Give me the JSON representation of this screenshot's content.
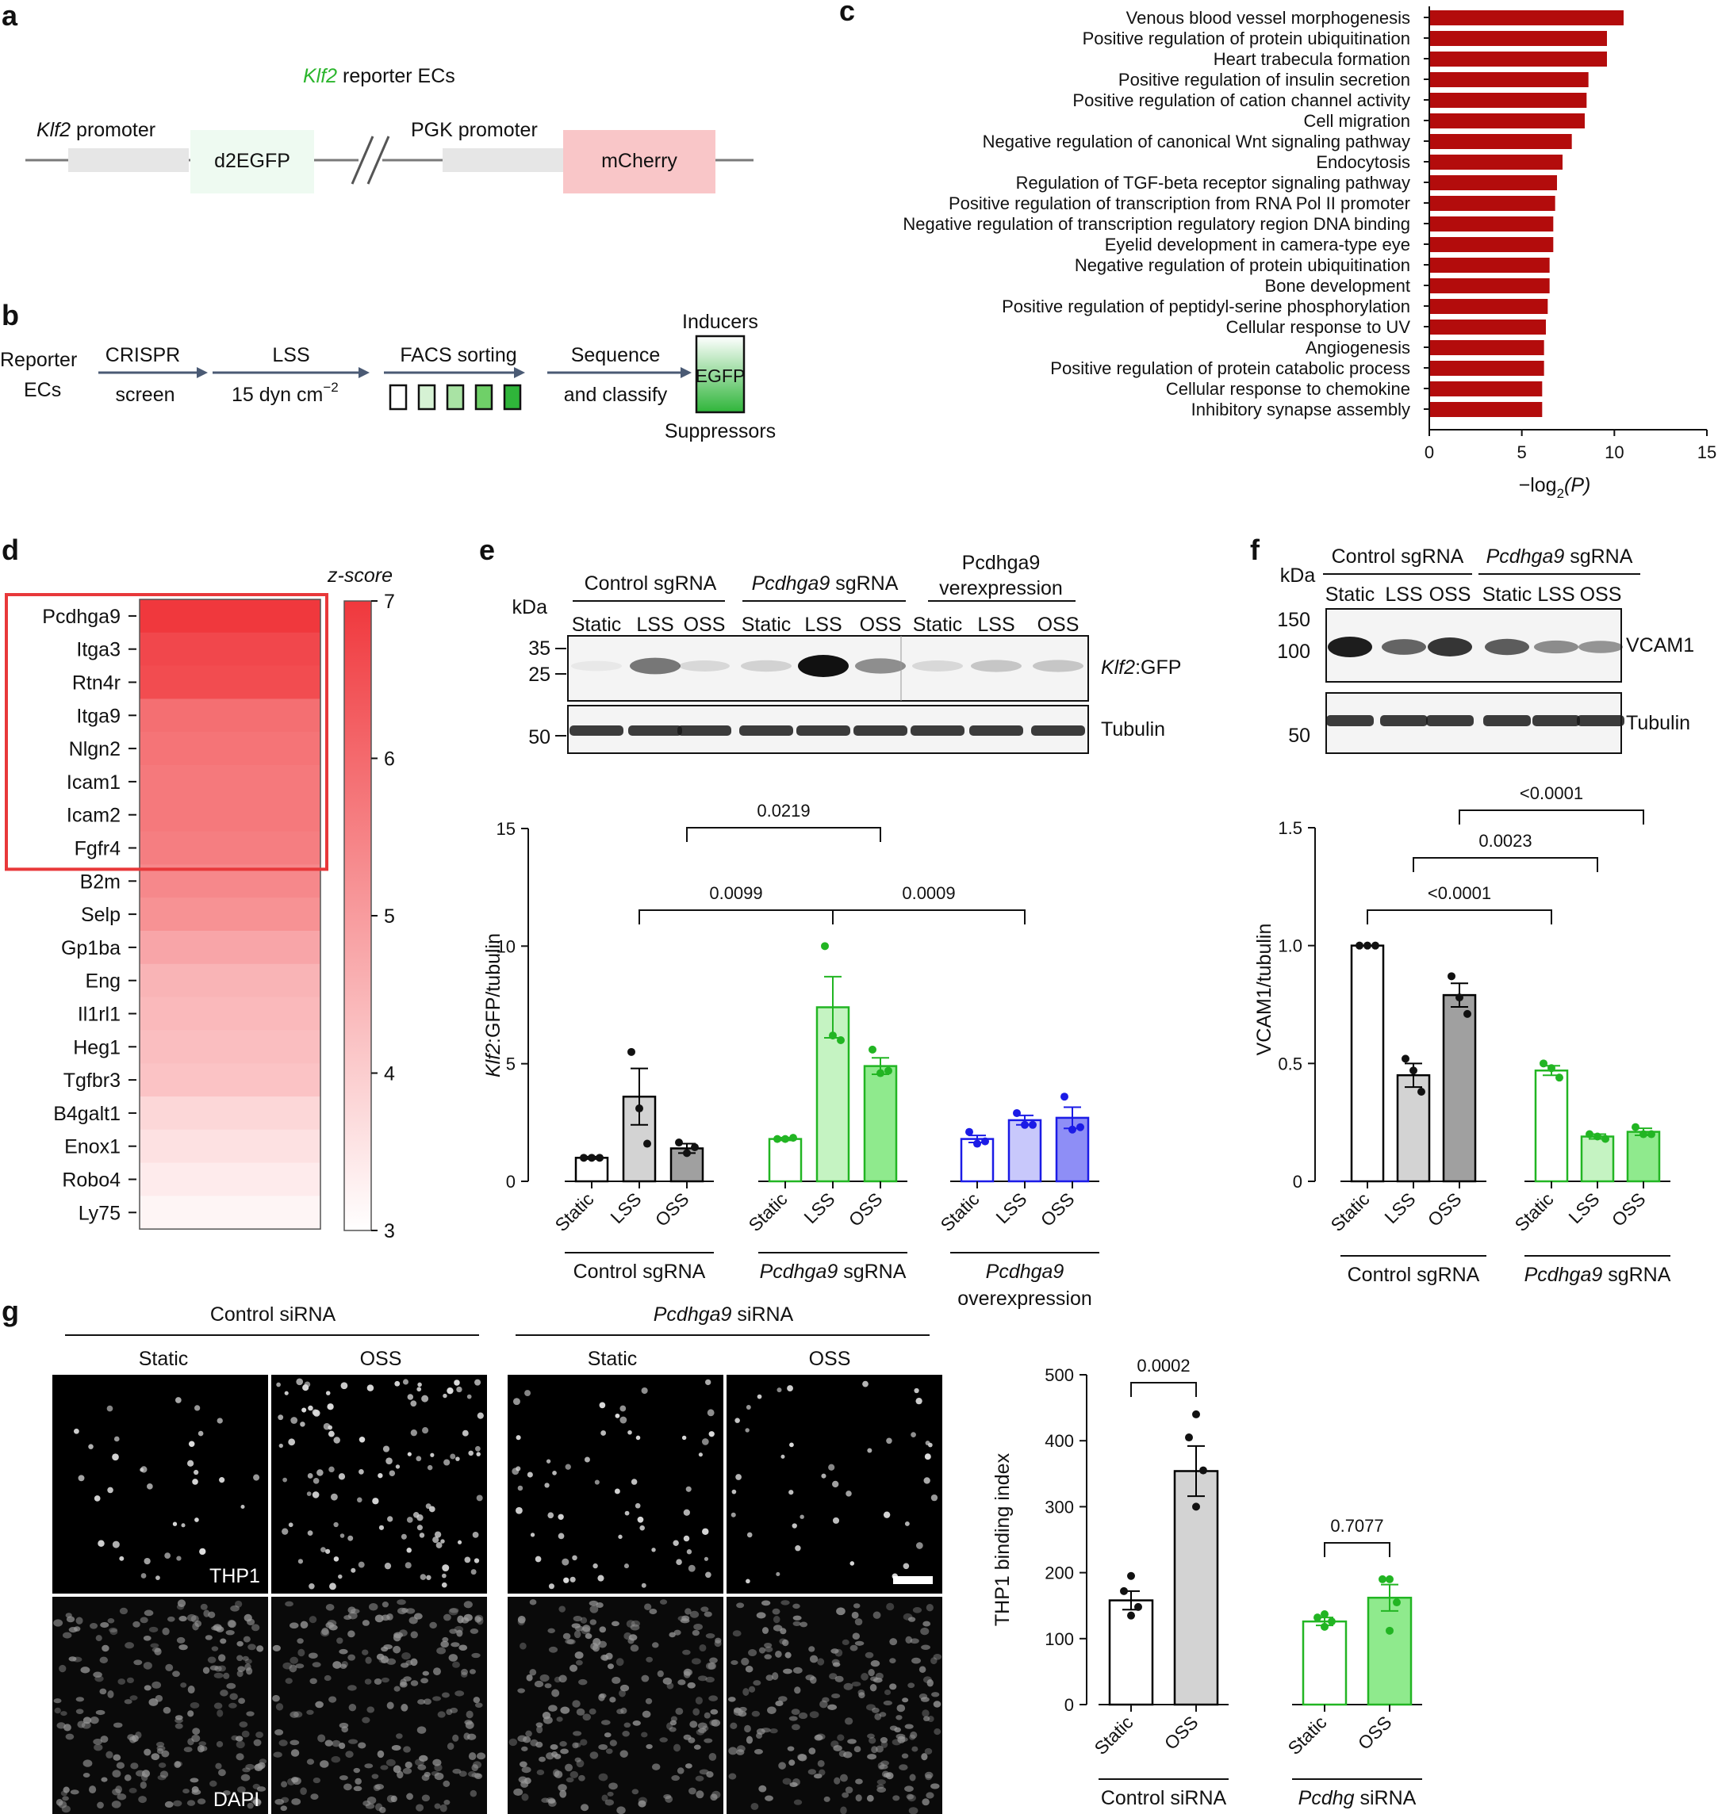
{
  "panels": {
    "a": "a",
    "b": "b",
    "c": "c",
    "d": "d",
    "e": "e",
    "f": "f",
    "g": "g"
  },
  "panel_a": {
    "title_gene": "Klf2",
    "title_rest": " reporter ECs",
    "klf2_promoter_gene": "Klf2",
    "klf2_promoter_rest": " promoter",
    "d2egfp": "d2EGFP",
    "pgk_promoter": "PGK promoter",
    "mcherry": "mCherry",
    "colors": {
      "d2egfp_box": "#eefaf1",
      "mcherry_box": "#f9c6c8",
      "promoter_box": "#e6e6e6"
    }
  },
  "panel_b": {
    "reporter_line1": "Reporter",
    "reporter_line2": "ECs",
    "crispr_line1": "CRISPR",
    "crispr_line2": "screen",
    "lss": "LSS",
    "lss_unit": "15 dyn cm",
    "lss_unit_sup": "−2",
    "facs": "FACS sorting",
    "sequence_line1": "Sequence",
    "sequence_line2": "and classify",
    "inducers": "Inducers",
    "egfp": "EGFP",
    "suppressors": "Suppressors",
    "facs_box_fills": [
      "#ffffff",
      "#d6f2d4",
      "#a9e3a4",
      "#6fd068",
      "#2fb53a"
    ]
  },
  "chart_data": [
    {
      "panel": "c",
      "type": "bar",
      "orientation": "horizontal",
      "categories": [
        "Venous blood vessel morphogenesis",
        "Positive regulation of protein ubiquitination",
        "Heart trabecula formation",
        "Positive regulation of insulin secretion",
        "Positive regulation of cation channel activity",
        "Cell migration",
        "Negative regulation of canonical Wnt signaling pathway",
        "Endocytosis",
        "Regulation of TGF-beta receptor signaling pathway",
        "Positive regulation of transcription from RNA Pol II promoter",
        "Negative regulation of transcription regulatory region DNA binding",
        "Eyelid development in camera-type eye",
        "Negative regulation of protein ubiquitination",
        "Bone development",
        "Positive regulation of peptidyl-serine phosphorylation",
        "Cellular response to UV",
        "Angiogenesis",
        "Positive regulation of protein catabolic process",
        "Cellular response to chemokine",
        "Inhibitory synapse assembly"
      ],
      "values": [
        10.5,
        9.6,
        9.6,
        8.6,
        8.5,
        8.4,
        7.7,
        7.2,
        6.9,
        6.8,
        6.7,
        6.7,
        6.5,
        6.5,
        6.4,
        6.3,
        6.2,
        6.2,
        6.1,
        6.1
      ],
      "xlabel": "−log",
      "xlabel_sub": "2",
      "xlabel_tail": "(P)",
      "xticks": [
        "0",
        "5",
        "10",
        "15"
      ],
      "xlim": [
        0,
        15
      ],
      "bar_color": "#b30c0c"
    },
    {
      "panel": "d",
      "type": "heatmap",
      "genes": [
        "Pcdhga9",
        "Itga3",
        "Rtn4r",
        "Itga9",
        "Nlgn2",
        "Icam1",
        "Icam2",
        "Fgfr4",
        "B2m",
        "Selp",
        "Gp1ba",
        "Eng",
        "Il1rl1",
        "Heg1",
        "Tgfbr3",
        "B4galt1",
        "Enox1",
        "Robo4",
        "Ly75"
      ],
      "z_scores": [
        7.0,
        6.7,
        6.6,
        5.9,
        5.8,
        5.7,
        5.7,
        5.6,
        5.4,
        5.2,
        4.8,
        4.5,
        4.4,
        4.3,
        4.2,
        3.8,
        3.6,
        3.4,
        3.2
      ],
      "colorbar_title": "z-score",
      "colorbar_ticks": [
        "3",
        "4",
        "5",
        "6",
        "7"
      ],
      "range": [
        3,
        7
      ],
      "highlighted_count": 8,
      "colors": {
        "high": "#f0383d",
        "low": "#ffffff",
        "highlight_box": "#e8383a"
      }
    },
    {
      "panel": "e",
      "type": "bar",
      "ylabel_gene": "Klf2",
      "ylabel_rest": ":GFP/tubulin",
      "ylim": [
        0,
        15
      ],
      "yticks": [
        "0",
        "5",
        "10",
        "15"
      ],
      "categories": [
        "Static",
        "LSS",
        "OSS"
      ],
      "groups": [
        {
          "name": "Control sgRNA",
          "name_italic_part": "",
          "color": "#000000",
          "fills": [
            "#ffffff",
            "#d3d3d3",
            "#a0a0a0"
          ],
          "means": [
            1.0,
            3.6,
            1.4
          ],
          "errors": [
            0.05,
            1.2,
            0.2
          ],
          "points": [
            [
              1.0,
              1.0,
              1.0
            ],
            [
              5.5,
              3.1,
              1.6
            ],
            [
              1.65,
              1.2,
              1.45
            ]
          ]
        },
        {
          "name": " sgRNA",
          "name_italic_part": "Pcdhga9",
          "color": "#22b523",
          "fills": [
            "#ffffff",
            "#c5f3c2",
            "#8fea8d"
          ],
          "means": [
            1.8,
            7.4,
            4.9
          ],
          "errors": [
            0.06,
            1.3,
            0.35
          ],
          "points": [
            [
              1.8,
              1.8,
              1.85
            ],
            [
              10.0,
              6.2,
              6.0
            ],
            [
              5.6,
              4.6,
              4.7
            ]
          ]
        },
        {
          "name": "overexpression",
          "name_italic_part": "Pcdhga9",
          "color": "#1b1be6",
          "fills": [
            "#ffffff",
            "#c8c8fb",
            "#8e8ef6"
          ],
          "means": [
            1.8,
            2.6,
            2.7
          ],
          "errors": [
            0.15,
            0.2,
            0.45
          ],
          "points": [
            [
              2.1,
              1.6,
              1.7
            ],
            [
              2.9,
              2.4,
              2.4
            ],
            [
              3.6,
              2.2,
              2.3
            ]
          ]
        }
      ],
      "comparisons": [
        {
          "label": "0.0219",
          "from": "Control sgRNA OSS",
          "to": "Pcdhga9 sgRNA OSS"
        },
        {
          "label": "0.0099",
          "from": "Control sgRNA LSS",
          "to": "Pcdhga9 sgRNA LSS"
        },
        {
          "label": "0.0009",
          "from": "Pcdhga9 sgRNA LSS",
          "to": "Pcdhga9 overexpression LSS"
        }
      ]
    },
    {
      "panel": "f",
      "type": "bar",
      "ylabel": "VCAM1/tubulin",
      "ylim": [
        0,
        1.5
      ],
      "yticks": [
        "0",
        "0.5",
        "1.0",
        "1.5"
      ],
      "categories": [
        "Static",
        "LSS",
        "OSS"
      ],
      "groups": [
        {
          "name": "Control sgRNA",
          "name_italic_part": "",
          "color": "#000000",
          "fills": [
            "#ffffff",
            "#d3d3d3",
            "#a0a0a0"
          ],
          "means": [
            1.0,
            0.45,
            0.79
          ],
          "errors": [
            0.0,
            0.05,
            0.05
          ],
          "points": [
            [
              1.0,
              1.0,
              1.0
            ],
            [
              0.52,
              0.47,
              0.38
            ],
            [
              0.87,
              0.78,
              0.71
            ]
          ]
        },
        {
          "name": " sgRNA",
          "name_italic_part": "Pcdhga9",
          "color": "#22b523",
          "fills": [
            "#ffffff",
            "#c5f3c2",
            "#8fea8d"
          ],
          "means": [
            0.47,
            0.19,
            0.21
          ],
          "errors": [
            0.02,
            0.01,
            0.015
          ],
          "points": [
            [
              0.5,
              0.48,
              0.44
            ],
            [
              0.2,
              0.19,
              0.18
            ],
            [
              0.23,
              0.2,
              0.2
            ]
          ]
        }
      ],
      "comparisons": [
        {
          "label": "<0.0001",
          "from": "Control sgRNA OSS",
          "to": "Pcdhga9 sgRNA OSS"
        },
        {
          "label": "0.0023",
          "from": "Control sgRNA LSS",
          "to": "Pcdhga9 sgRNA LSS"
        },
        {
          "label": "<0.0001",
          "from": "Control sgRNA Static",
          "to": "Pcdhga9 sgRNA Static"
        }
      ]
    },
    {
      "panel": "g",
      "type": "bar",
      "ylabel": "THP1 binding index",
      "ylim": [
        0,
        500
      ],
      "yticks": [
        "0",
        "100",
        "200",
        "300",
        "400",
        "500"
      ],
      "categories": [
        "Static",
        "OSS"
      ],
      "groups": [
        {
          "name": "Control siRNA",
          "name_italic_part": "",
          "color": "#000000",
          "fills": [
            "#ffffff",
            "#d3d3d3"
          ],
          "means": [
            158,
            354
          ],
          "errors": [
            14,
            38
          ],
          "points": [
            [
              195,
              172,
              148,
              135
            ],
            [
              440,
              405,
              355,
              300
            ]
          ]
        },
        {
          "name": " siRNA",
          "name_italic_part": "Pcdhg",
          "color": "#22b523",
          "fills": [
            "#ffffff",
            "#8fea8d"
          ],
          "means": [
            126,
            162
          ],
          "errors": [
            6,
            20
          ],
          "points": [
            [
              137,
              132,
              126,
              118
            ],
            [
              190,
              190,
              155,
              112
            ]
          ]
        }
      ],
      "comparisons": [
        {
          "label": "0.0002",
          "from": "Control siRNA Static",
          "to": "Control siRNA OSS"
        },
        {
          "label": "0.7077",
          "from": "Pcdhg siRNA Static",
          "to": "Pcdhg siRNA OSS"
        }
      ]
    }
  ],
  "blot_e": {
    "kda": "kDa",
    "group1": "Control sgRNA",
    "group2_gene": "Pcdhga9",
    "group2_rest": " sgRNA",
    "group3_line1": "Pcdhga9",
    "group3_line2": "verexpression",
    "lanes": [
      "Static",
      "LSS",
      "OSS",
      "Static",
      "LSS",
      "OSS",
      "Static",
      "LSS",
      "OSS"
    ],
    "markers_top": [
      "35",
      "25"
    ],
    "markers_bottom": [
      "50"
    ],
    "band_top_gene": "Klf2",
    "band_top_rest": ":GFP",
    "band_bottom": "Tubulin",
    "gfp_intensity": [
      0.05,
      0.55,
      0.12,
      0.15,
      1.0,
      0.45,
      0.12,
      0.2,
      0.2
    ]
  },
  "blot_f": {
    "kda": "kDa",
    "group1": "Control sgRNA",
    "group2_gene": "Pcdhga9",
    "group2_rest": " sgRNA",
    "lanes": [
      "Static",
      "LSS",
      "OSS",
      "Static",
      "LSS",
      "OSS"
    ],
    "markers_top": [
      "150",
      "100"
    ],
    "markers_bottom": [
      "50"
    ],
    "band_top": "VCAM1",
    "band_bottom": "Tubulin",
    "vcam_intensity": [
      1.0,
      0.55,
      0.85,
      0.6,
      0.3,
      0.25
    ]
  },
  "micro_g": {
    "group1": "Control siRNA",
    "group2_gene": "Pcdhga9",
    "group2_rest": " siRNA",
    "cols": [
      "Static",
      "OSS",
      "Static",
      "OSS"
    ],
    "thp1_label": "THP1",
    "dapi_label": "DAPI",
    "thp1_cell_counts": [
      35,
      110,
      60,
      40
    ]
  }
}
